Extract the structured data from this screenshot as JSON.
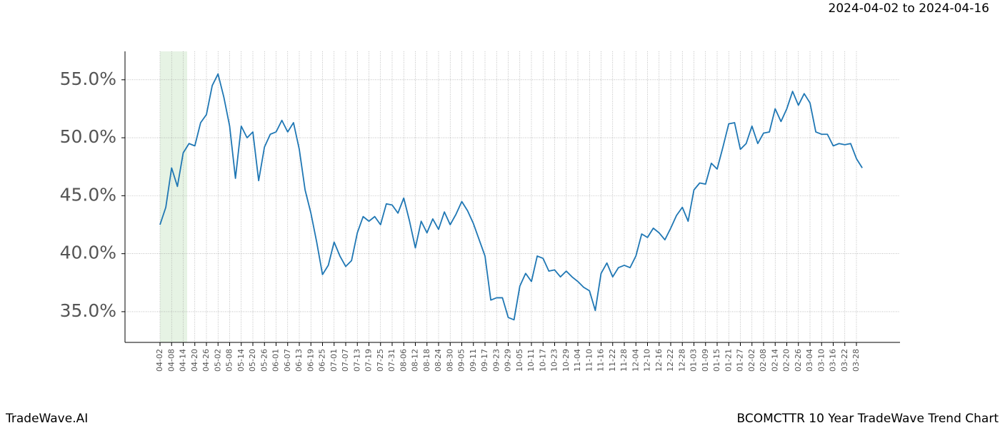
{
  "chart_data": {
    "type": "line",
    "title": "2024-04-02 to 2024-04-16",
    "footer_left": "TradeWave.AI",
    "footer_right": "BCOMCTTR 10 Year TradeWave Trend Chart",
    "categories": [
      "04-02",
      null,
      "04-08",
      null,
      "04-14",
      null,
      "04-20",
      null,
      "04-26",
      null,
      "05-02",
      null,
      "05-08",
      null,
      "05-14",
      null,
      "05-20",
      null,
      "05-26",
      null,
      "06-01",
      null,
      "06-07",
      null,
      "06-13",
      null,
      "06-19",
      null,
      "06-25",
      null,
      "07-01",
      null,
      "07-07",
      null,
      "07-13",
      null,
      "07-19",
      null,
      "07-25",
      null,
      "07-31",
      null,
      "08-06",
      null,
      "08-12",
      null,
      "08-18",
      null,
      "08-24",
      null,
      "08-30",
      null,
      "09-05",
      null,
      "09-11",
      null,
      "09-17",
      null,
      "09-23",
      null,
      "09-29",
      null,
      "10-05",
      null,
      "10-11",
      null,
      "10-17",
      null,
      "10-23",
      null,
      "10-29",
      null,
      "11-04",
      null,
      "11-10",
      null,
      "11-16",
      null,
      "11-22",
      null,
      "11-28",
      null,
      "12-04",
      null,
      "12-10",
      null,
      "12-16",
      null,
      "12-22",
      null,
      "12-28",
      null,
      "01-03",
      null,
      "01-09",
      null,
      "01-15",
      null,
      "01-21",
      null,
      "01-27",
      null,
      "02-02",
      null,
      "02-08",
      null,
      "02-14",
      null,
      "02-20",
      null,
      "02-26",
      null,
      "03-04",
      null,
      "03-10",
      null,
      "03-16",
      null,
      "03-22",
      null,
      "03-28",
      null
    ],
    "series": [
      {
        "name": "BCOMCTTR",
        "color": "#1f77b4",
        "values": [
          42.5,
          44,
          47.4,
          45.8,
          48.7,
          49.5,
          49.3,
          51.3,
          52,
          54.5,
          55.5,
          53.5,
          51,
          46.5,
          51,
          50,
          50.5,
          46.3,
          49.2,
          50.3,
          50.5,
          51.5,
          50.5,
          51.3,
          49,
          45.5,
          43.5,
          41,
          38.2,
          39,
          41,
          39.8,
          38.9,
          39.4,
          41.8,
          43.2,
          42.8,
          43.2,
          42.5,
          44.3,
          44.2,
          43.5,
          44.8,
          42.8,
          40.5,
          42.8,
          41.8,
          43,
          42.1,
          43.6,
          42.5,
          43.4,
          44.5,
          43.7,
          42.6,
          41.2,
          39.8,
          36,
          36.2,
          36.2,
          34.5,
          34.3,
          37.2,
          38.3,
          37.6,
          39.8,
          39.6,
          38.5,
          38.6,
          38,
          38.5,
          38,
          37.6,
          37.1,
          36.8,
          35.1,
          38.3,
          39.2,
          38,
          38.8,
          39,
          38.8,
          39.8,
          41.7,
          41.4,
          42.2,
          41.8,
          41.2,
          42.2,
          43.3,
          44,
          42.8,
          45.5,
          46.1,
          46,
          47.8,
          47.3,
          49.2,
          51.2,
          51.3,
          49,
          49.5,
          51,
          49.5,
          50.4,
          50.5,
          52.5,
          51.4,
          52.5,
          54,
          52.8,
          53.8,
          53,
          50.5,
          50.3,
          50.3,
          49.3,
          49.5,
          49.4,
          49.5,
          48.2,
          47.4
        ]
      }
    ],
    "ylim": [
      32.35,
      57.45
    ],
    "yticks": [
      {
        "value": 35,
        "label": "35.0%"
      },
      {
        "value": 40,
        "label": "40.0%"
      },
      {
        "value": 45,
        "label": "45.0%"
      },
      {
        "value": 50,
        "label": "50.0%"
      },
      {
        "value": 55,
        "label": "55.0%"
      }
    ],
    "grid": true
  }
}
